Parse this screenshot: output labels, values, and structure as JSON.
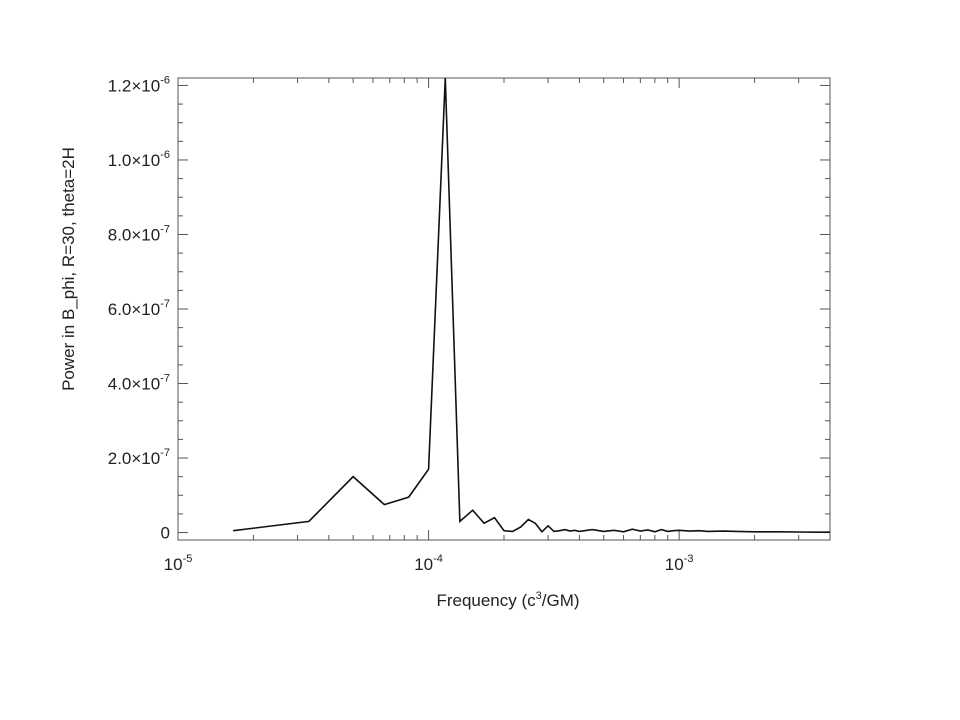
{
  "chart_data": {
    "type": "line",
    "title": "",
    "xlabel_main": "Frequency (c",
    "xlabel_sup": "3",
    "xlabel_end": "/GM)",
    "ylabel": "Power in B_phi, R=30, theta=2H",
    "x_scale": "log",
    "xlim": [
      1e-05,
      0.004
    ],
    "ylim": [
      -2e-08,
      1.22e-06
    ],
    "grid": false,
    "x_ticks": [
      {
        "value": 1e-05,
        "base": "10",
        "exp": "-5"
      },
      {
        "value": 0.0001,
        "base": "10",
        "exp": "-4"
      },
      {
        "value": 0.001,
        "base": "10",
        "exp": "-3"
      }
    ],
    "y_ticks": [
      {
        "value": 0,
        "mant": "0",
        "exp": ""
      },
      {
        "value": 2e-07,
        "mant": "2.0×10",
        "exp": "-7"
      },
      {
        "value": 4e-07,
        "mant": "4.0×10",
        "exp": "-7"
      },
      {
        "value": 6e-07,
        "mant": "6.0×10",
        "exp": "-7"
      },
      {
        "value": 8e-07,
        "mant": "8.0×10",
        "exp": "-7"
      },
      {
        "value": 1e-06,
        "mant": "1.0×10",
        "exp": "-6"
      },
      {
        "value": 1.2e-06,
        "mant": "1.2×10",
        "exp": "-6"
      }
    ],
    "series": [
      {
        "x": [
          1.66e-05,
          3.33e-05,
          5e-05,
          6.66e-05,
          8.33e-05,
          0.0001,
          0.0001166,
          0.0001333,
          0.00015,
          0.0001666,
          0.0001833,
          0.0002,
          0.0002166,
          0.0002333,
          0.00025,
          0.0002666,
          0.0002833,
          0.0003,
          0.0003166,
          0.0003333,
          0.00035,
          0.0003666,
          0.0003833,
          0.0004,
          0.00045,
          0.0005,
          0.00055,
          0.0006,
          0.00065,
          0.0007,
          0.00075,
          0.0008,
          0.00085,
          0.0009,
          0.00095,
          0.001,
          0.0011,
          0.0012,
          0.0013,
          0.0015,
          0.0017,
          0.002,
          0.0025,
          0.003,
          0.0035,
          0.004
        ],
        "y": [
          5e-09,
          3e-08,
          1.5e-07,
          7.5e-08,
          9.5e-08,
          1.7e-07,
          1.23e-06,
          3e-08,
          6e-08,
          2.5e-08,
          4e-08,
          5e-09,
          3e-09,
          1.5e-08,
          3.5e-08,
          2.5e-08,
          2e-09,
          1.8e-08,
          3e-09,
          5e-09,
          8e-09,
          4e-09,
          6e-09,
          3e-09,
          8e-09,
          3e-09,
          6e-09,
          2e-09,
          9e-09,
          4e-09,
          7e-09,
          2e-09,
          8e-09,
          3e-09,
          5e-09,
          6e-09,
          4e-09,
          5e-09,
          3e-09,
          4e-09,
          3e-09,
          2e-09,
          2e-09,
          1.5e-09,
          1e-09,
          1e-09
        ]
      }
    ]
  }
}
